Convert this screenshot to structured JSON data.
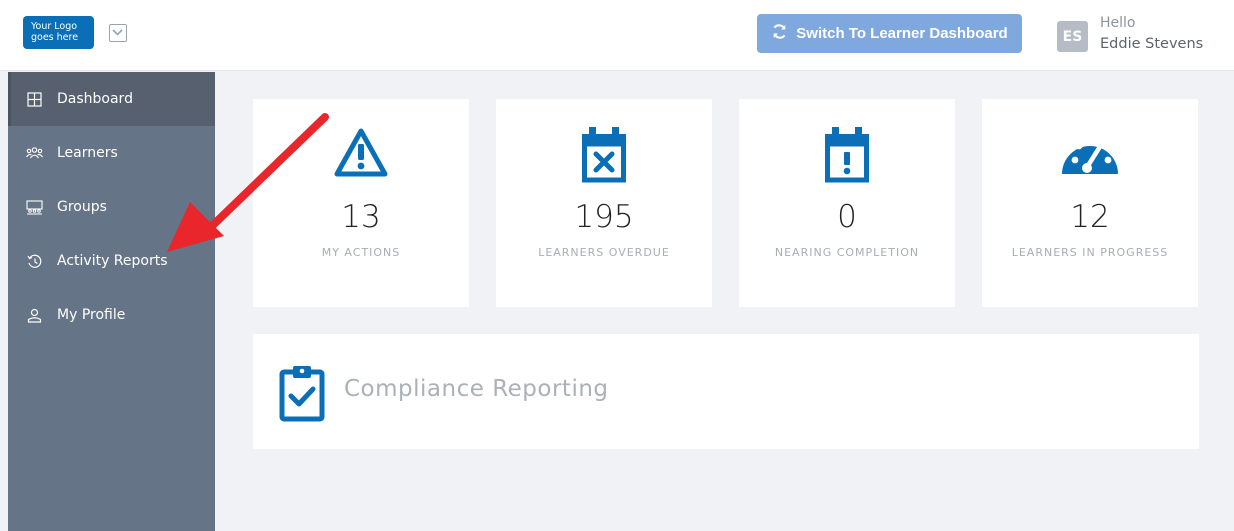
{
  "header": {
    "logo_line1": "Your Logo",
    "logo_line2": "goes here",
    "logo_dropdown_icon": "chevron-down-icon",
    "switch_button_label": "Switch To Learner Dashboard",
    "switch_icon": "sync-icon",
    "avatar_initials": "ES",
    "greeting": "Hello",
    "user_name": "Eddie Stevens"
  },
  "sidebar": {
    "items": [
      {
        "label": "Dashboard",
        "icon": "dashboard-grid-icon",
        "active": true
      },
      {
        "label": "Learners",
        "icon": "users-icon",
        "active": false
      },
      {
        "label": "Groups",
        "icon": "groups-icon",
        "active": false
      },
      {
        "label": "Activity Reports",
        "icon": "history-icon",
        "active": false
      },
      {
        "label": "My Profile",
        "icon": "user-icon",
        "active": false
      }
    ]
  },
  "stats": [
    {
      "value": "13",
      "label": "MY ACTIONS",
      "icon": "warning-triangle-icon"
    },
    {
      "value": "195",
      "label": "LEARNERS OVERDUE",
      "icon": "calendar-x-icon"
    },
    {
      "value": "0",
      "label": "NEARING COMPLETION",
      "icon": "calendar-exclamation-icon"
    },
    {
      "value": "12",
      "label": "LEARNERS IN PROGRESS",
      "icon": "gauge-icon"
    }
  ],
  "compliance": {
    "title": "Compliance Reporting",
    "icon": "clipboard-check-icon"
  },
  "colors": {
    "accent_blue": "#0b6fb8",
    "switch_button": "#7fa8de",
    "sidebar_bg": "#657486",
    "sidebar_active": "#56606f",
    "annotation_arrow": "#e8262b"
  }
}
